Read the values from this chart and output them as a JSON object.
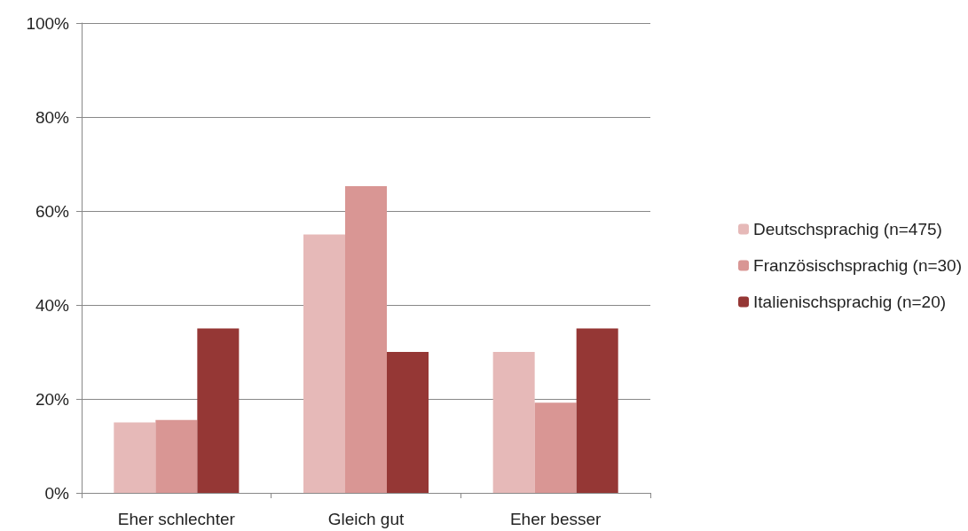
{
  "chart_data": {
    "type": "bar",
    "categories": [
      "Eher schlechter",
      "Gleich gut",
      "Eher besser"
    ],
    "series": [
      {
        "name": "Deutschsprachig (n=475)",
        "color": "#e6b9b8",
        "values": [
          15,
          55,
          30
        ]
      },
      {
        "name": "Französischsprachig (n=30)",
        "color": "#d99694",
        "values": [
          15.5,
          65.3,
          19.2
        ]
      },
      {
        "name": "Italienischsprachig (n=20)",
        "color": "#953735",
        "values": [
          35,
          30,
          35
        ]
      }
    ],
    "ylim": [
      0,
      100
    ],
    "yticks": [
      {
        "value": 0,
        "label": "0%"
      },
      {
        "value": 20,
        "label": "20%"
      },
      {
        "value": 40,
        "label": "40%"
      },
      {
        "value": 60,
        "label": "60%"
      },
      {
        "value": 80,
        "label": "80%"
      },
      {
        "value": 100,
        "label": "100%"
      }
    ],
    "grid": "y",
    "legend": "right"
  }
}
